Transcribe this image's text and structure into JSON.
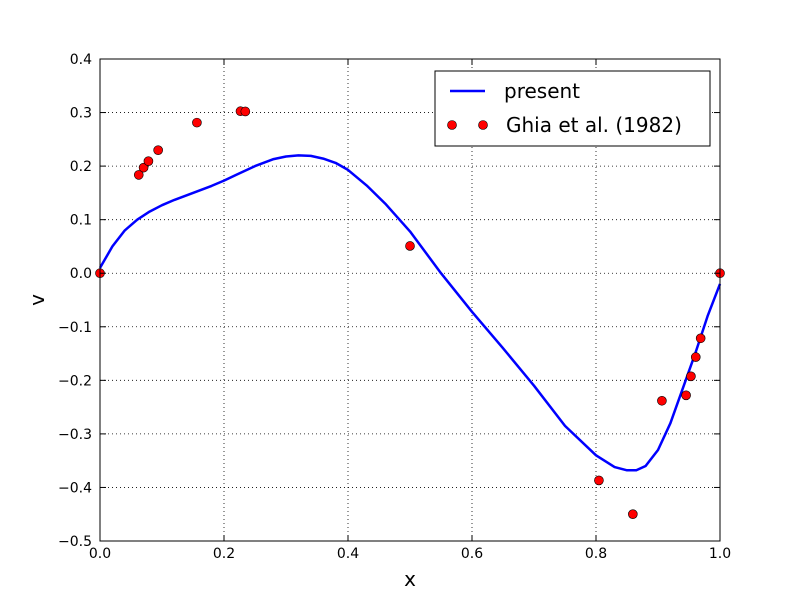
{
  "chart_data": {
    "type": "line",
    "xlabel": "x",
    "ylabel": "v",
    "xlim": [
      0.0,
      1.0
    ],
    "ylim": [
      -0.5,
      0.4
    ],
    "x_ticks": [
      0.0,
      0.2,
      0.4,
      0.6,
      0.8,
      1.0
    ],
    "x_tick_labels": [
      "0.0",
      "0.2",
      "0.4",
      "0.6",
      "0.8",
      "1.0"
    ],
    "y_ticks": [
      -0.5,
      -0.4,
      -0.3,
      -0.2,
      -0.1,
      0.0,
      0.1,
      0.2,
      0.3,
      0.4
    ],
    "y_tick_labels": [
      "−0.5",
      "−0.4",
      "−0.3",
      "−0.2",
      "−0.1",
      "0.0",
      "0.1",
      "0.2",
      "0.3",
      "0.4"
    ],
    "grid": true,
    "legend_position": "top-right",
    "series": [
      {
        "name": "present",
        "kind": "line",
        "color": "#0000ff",
        "x": [
          0.0,
          0.02,
          0.04,
          0.06,
          0.08,
          0.1,
          0.12,
          0.15,
          0.18,
          0.2,
          0.22,
          0.25,
          0.28,
          0.3,
          0.32,
          0.34,
          0.36,
          0.38,
          0.4,
          0.43,
          0.46,
          0.5,
          0.55,
          0.6,
          0.65,
          0.7,
          0.75,
          0.8,
          0.83,
          0.85,
          0.865,
          0.88,
          0.9,
          0.92,
          0.94,
          0.96,
          0.98,
          1.0
        ],
        "y": [
          0.01,
          0.05,
          0.08,
          0.1,
          0.115,
          0.127,
          0.137,
          0.15,
          0.163,
          0.173,
          0.184,
          0.2,
          0.213,
          0.218,
          0.22,
          0.219,
          0.214,
          0.206,
          0.193,
          0.164,
          0.13,
          0.078,
          0.0,
          -0.072,
          -0.14,
          -0.21,
          -0.285,
          -0.34,
          -0.362,
          -0.368,
          -0.368,
          -0.36,
          -0.33,
          -0.28,
          -0.215,
          -0.15,
          -0.08,
          -0.02
        ]
      },
      {
        "name": "Ghia et al. (1982)",
        "kind": "scatter",
        "color": "#ff0000",
        "x": [
          0.0,
          0.0625,
          0.0703,
          0.0781,
          0.0938,
          0.1563,
          0.2266,
          0.2344,
          0.5,
          0.8047,
          0.8594,
          0.9063,
          0.9453,
          0.9531,
          0.9609,
          0.9688,
          1.0
        ],
        "y": [
          0.0,
          0.1836,
          0.1971,
          0.2092,
          0.2297,
          0.2812,
          0.3025,
          0.302,
          0.0509,
          -0.3869,
          -0.4499,
          -0.2382,
          -0.228,
          -0.1925,
          -0.1566,
          -0.1215,
          0.0
        ]
      }
    ]
  }
}
